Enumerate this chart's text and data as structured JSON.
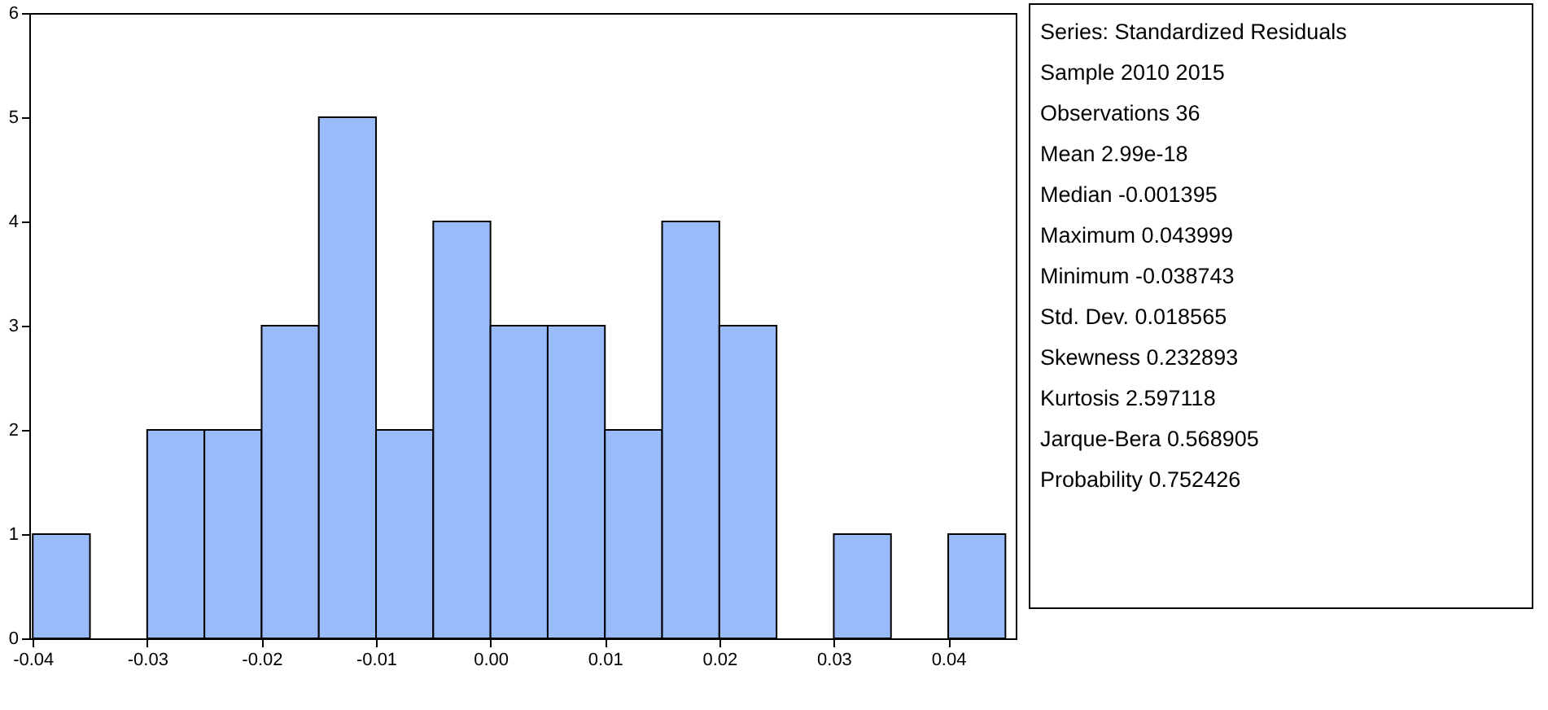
{
  "chart_data": {
    "type": "histogram",
    "bins": [
      -0.04,
      -0.035,
      -0.03,
      -0.025,
      -0.02,
      -0.015,
      -0.01,
      -0.005,
      0,
      0.005,
      0.01,
      0.015,
      0.02,
      0.025,
      0.03,
      0.035,
      0.04,
      0.045
    ],
    "values": [
      1,
      0,
      2,
      2,
      3,
      5,
      2,
      4,
      3,
      3,
      2,
      4,
      3,
      0,
      1,
      0,
      1
    ],
    "color": "#9abbf9",
    "xlim": [
      -0.0403,
      0.0459
    ],
    "xticks": [
      -0.04,
      -0.03,
      -0.02,
      -0.01,
      {
        "value": 0,
        "label": "0.00"
      },
      0.01,
      0.02,
      0.03,
      0.04
    ],
    "ylim": [
      0,
      6
    ],
    "yticks": [
      0,
      1,
      2,
      3,
      4,
      5,
      6
    ],
    "grid": false,
    "annotations": [
      "Series: Standardized Residuals",
      "Sample 2010 2015",
      "Observations 36",
      "Mean 2.99e-18",
      "Median -0.001395",
      "Maximum 0.043999",
      "Minimum -0.038743",
      "Std. Dev. 0.018565",
      "Skewness 0.232893",
      "Kurtosis 2.597118",
      "Jarque-Bera 0.568905",
      "Probability 0.752426"
    ]
  }
}
